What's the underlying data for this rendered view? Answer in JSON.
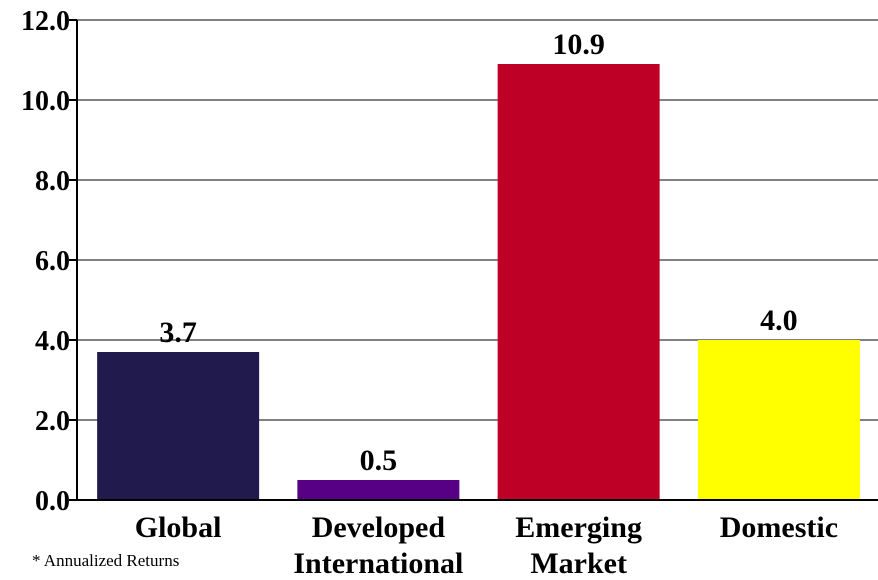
{
  "chart_data": {
    "type": "bar",
    "title": "",
    "xlabel": "",
    "ylabel": "",
    "ylim": [
      0,
      12.0
    ],
    "yticks": [
      "0.0",
      "2.0",
      "4.0",
      "6.0",
      "8.0",
      "10.0",
      "12.0"
    ],
    "ytick_values": [
      0,
      2,
      4,
      6,
      8,
      10,
      12
    ],
    "grid": true,
    "categories": [
      [
        "Global"
      ],
      [
        "Developed",
        "International"
      ],
      [
        "Emerging",
        "Market"
      ],
      [
        "Domestic"
      ]
    ],
    "values": [
      3.7,
      0.5,
      10.9,
      4.0
    ],
    "value_labels": [
      "3.7",
      "0.5",
      "10.9",
      "4.0"
    ],
    "colors": [
      "#211a4d",
      "#580085",
      "#be0027",
      "#ffff00"
    ]
  },
  "footnote": "* Annualized Returns"
}
